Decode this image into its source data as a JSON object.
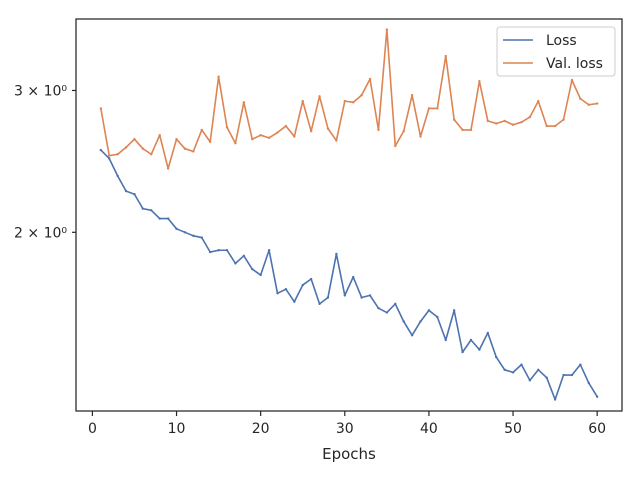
{
  "chart_data": {
    "type": "line",
    "title": "",
    "xlabel": "Epochs",
    "ylabel": "",
    "yscale": "log",
    "xlim": [
      -1.95,
      62.95
    ],
    "ylim": [
      1.2,
      3.68
    ],
    "grid": false,
    "legend_position": "top-right",
    "x_ticks": [
      0,
      10,
      20,
      30,
      40,
      50,
      60
    ],
    "x_tick_labels": [
      "0",
      "10",
      "20",
      "30",
      "40",
      "50",
      "60"
    ],
    "y_ticks": [
      2,
      3
    ],
    "y_tick_labels": [
      "2 × 10⁰",
      "3 × 10⁰"
    ],
    "x": [
      1,
      2,
      3,
      4,
      5,
      6,
      7,
      8,
      9,
      10,
      11,
      12,
      13,
      14,
      15,
      16,
      17,
      18,
      19,
      20,
      21,
      22,
      23,
      24,
      25,
      26,
      27,
      28,
      29,
      30,
      31,
      32,
      33,
      34,
      35,
      36,
      37,
      38,
      39,
      40,
      41,
      42,
      43,
      44,
      45,
      46,
      47,
      48,
      49,
      50,
      51,
      52,
      53,
      54,
      55,
      56,
      57,
      58,
      59,
      60
    ],
    "series": [
      {
        "name": "Loss",
        "color": "#4c72b0",
        "values": [
          2.53,
          2.47,
          2.35,
          2.25,
          2.23,
          2.14,
          2.13,
          2.08,
          2.08,
          2.02,
          2.0,
          1.98,
          1.97,
          1.89,
          1.9,
          1.9,
          1.83,
          1.87,
          1.8,
          1.77,
          1.9,
          1.68,
          1.7,
          1.64,
          1.72,
          1.75,
          1.63,
          1.66,
          1.88,
          1.67,
          1.76,
          1.66,
          1.67,
          1.61,
          1.59,
          1.63,
          1.55,
          1.49,
          1.55,
          1.6,
          1.57,
          1.47,
          1.6,
          1.42,
          1.47,
          1.43,
          1.5,
          1.4,
          1.35,
          1.34,
          1.37,
          1.31,
          1.35,
          1.32,
          1.24,
          1.33,
          1.33,
          1.37,
          1.3,
          1.25
        ]
      },
      {
        "name": "Val. loss",
        "color": "#dd8452",
        "values": [
          2.85,
          2.49,
          2.5,
          2.55,
          2.61,
          2.54,
          2.5,
          2.64,
          2.4,
          2.61,
          2.54,
          2.52,
          2.68,
          2.59,
          3.12,
          2.7,
          2.58,
          2.9,
          2.61,
          2.64,
          2.62,
          2.66,
          2.71,
          2.63,
          2.91,
          2.67,
          2.95,
          2.69,
          2.6,
          2.91,
          2.9,
          2.96,
          3.1,
          2.68,
          3.57,
          2.56,
          2.67,
          2.96,
          2.63,
          2.85,
          2.85,
          3.31,
          2.76,
          2.68,
          2.68,
          3.08,
          2.75,
          2.73,
          2.75,
          2.72,
          2.74,
          2.78,
          2.91,
          2.71,
          2.71,
          2.76,
          3.09,
          2.93,
          2.88,
          2.89
        ]
      }
    ]
  }
}
